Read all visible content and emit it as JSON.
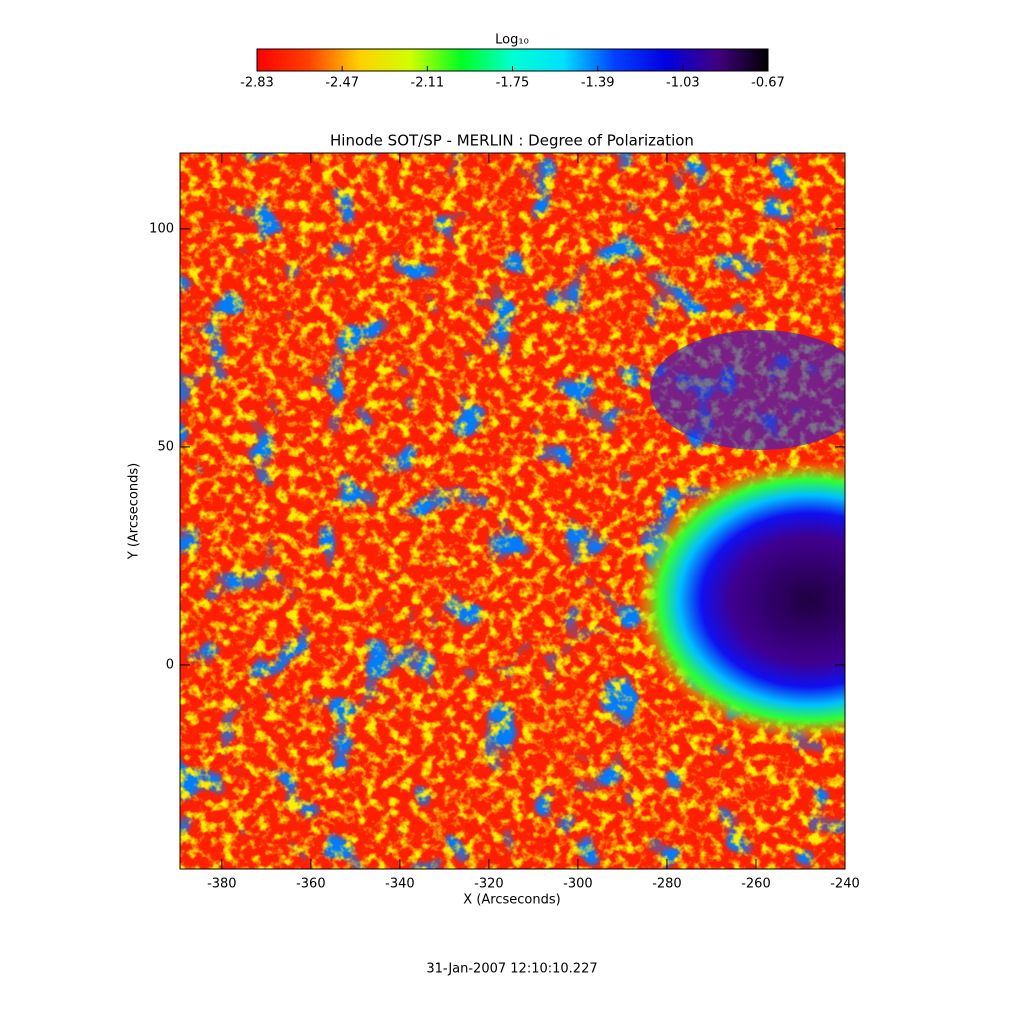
{
  "chart_data": {
    "type": "image",
    "title": "Hinode SOT/SP - MERLIN : Degree of Polarization",
    "xlabel": "X (Arcseconds)",
    "ylabel": "Y (Arcseconds)",
    "xlim": [
      -389.4,
      -240
    ],
    "ylim": [
      -46.8,
      117.4
    ],
    "xticks": [
      -380,
      -360,
      -340,
      -320,
      -300,
      -280,
      -260,
      -240
    ],
    "yticks": [
      0,
      50,
      100
    ],
    "annotation": "31-Jan-2007 12:10:10.227",
    "colorbar": {
      "label": "Log₁₀",
      "clim": [
        -2.83,
        -0.67
      ],
      "ticks": [
        -2.83,
        -2.47,
        -2.11,
        -1.75,
        -1.39,
        -1.03,
        -0.67
      ],
      "colors": [
        "#ff0000",
        "#ff4000",
        "#ffd000",
        "#d0ff00",
        "#00ff20",
        "#00ffd0",
        "#00e0ff",
        "#0040ff",
        "#0000e0",
        "#400080",
        "#000000"
      ]
    }
  }
}
